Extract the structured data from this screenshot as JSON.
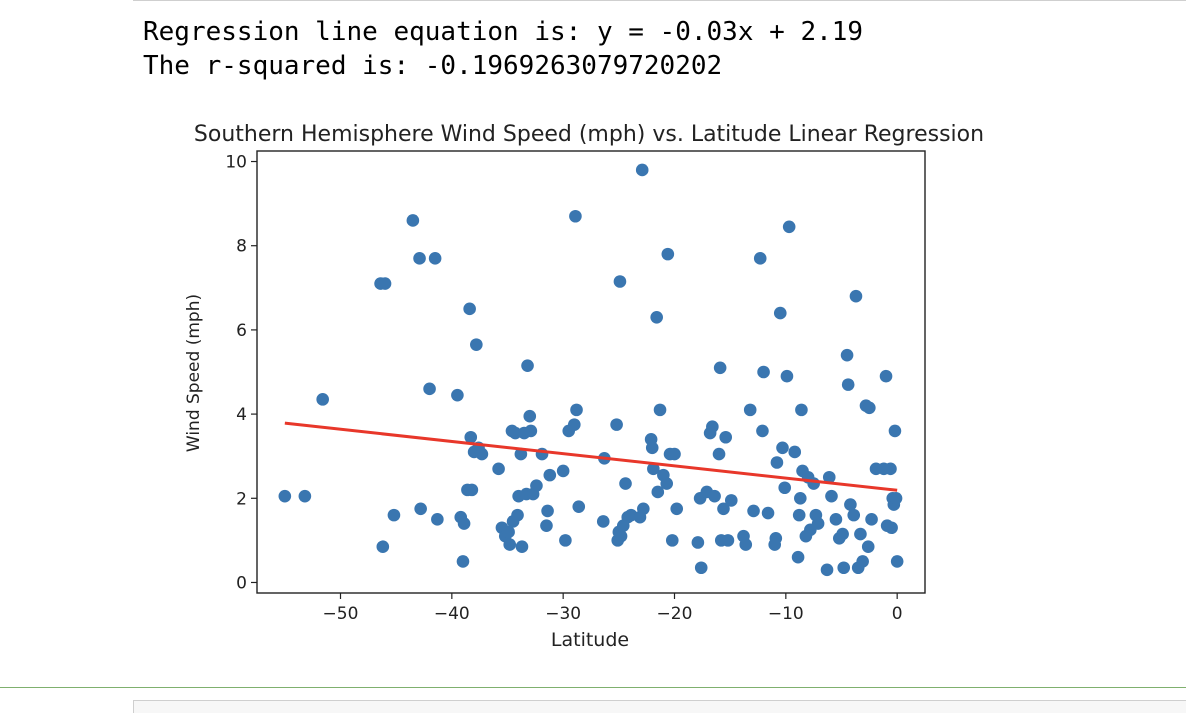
{
  "output": {
    "line1": "Regression line equation is: y = -0.03x + 2.19",
    "line2": "The r-squared is: -0.1969263079720202"
  },
  "chart_data": {
    "type": "scatter",
    "title": "Southern Hemisphere Wind Speed (mph) vs. Latitude Linear Regression",
    "xlabel": "Latitude",
    "ylabel": "Wind Speed (mph)",
    "xlim": [
      -57.5,
      2.5
    ],
    "ylim": [
      -0.25,
      10.25
    ],
    "xticks": [
      -50,
      -40,
      -30,
      -20,
      -10,
      0
    ],
    "yticks": [
      0,
      2,
      4,
      6,
      8,
      10
    ],
    "point_color": "#3a76b0",
    "line_color": "#e8372a",
    "grid": false,
    "regression": {
      "slope": -0.029,
      "intercept": 2.19,
      "x_start": -55,
      "x_end": 0
    },
    "points": [
      [
        -55.0,
        2.05
      ],
      [
        -53.2,
        2.05
      ],
      [
        -51.6,
        4.35
      ],
      [
        -46.4,
        7.1
      ],
      [
        -46.0,
        7.1
      ],
      [
        -46.2,
        0.85
      ],
      [
        -45.2,
        1.6
      ],
      [
        -43.5,
        8.6
      ],
      [
        -42.9,
        7.7
      ],
      [
        -42.8,
        1.75
      ],
      [
        -42.0,
        4.6
      ],
      [
        -41.5,
        7.7
      ],
      [
        -41.3,
        1.5
      ],
      [
        -39.5,
        4.45
      ],
      [
        -39.2,
        1.55
      ],
      [
        -39.0,
        0.5
      ],
      [
        -38.9,
        1.4
      ],
      [
        -38.6,
        2.2
      ],
      [
        -38.4,
        6.5
      ],
      [
        -38.3,
        3.45
      ],
      [
        -38.2,
        2.2
      ],
      [
        -38.0,
        3.1
      ],
      [
        -37.8,
        5.65
      ],
      [
        -37.6,
        3.2
      ],
      [
        -37.3,
        3.05
      ],
      [
        -35.8,
        2.7
      ],
      [
        -35.5,
        1.3
      ],
      [
        -35.2,
        1.1
      ],
      [
        -34.9,
        1.2
      ],
      [
        -34.8,
        0.9
      ],
      [
        -34.6,
        3.6
      ],
      [
        -34.5,
        1.45
      ],
      [
        -34.3,
        3.55
      ],
      [
        -34.1,
        1.6
      ],
      [
        -34.0,
        2.05
      ],
      [
        -33.8,
        3.05
      ],
      [
        -33.7,
        0.85
      ],
      [
        -33.5,
        3.55
      ],
      [
        -33.3,
        2.1
      ],
      [
        -33.2,
        5.15
      ],
      [
        -33.0,
        3.95
      ],
      [
        -32.9,
        3.6
      ],
      [
        -32.7,
        2.1
      ],
      [
        -32.4,
        2.3
      ],
      [
        -31.9,
        3.05
      ],
      [
        -31.5,
        1.35
      ],
      [
        -31.4,
        1.7
      ],
      [
        -31.2,
        2.55
      ],
      [
        -30.0,
        2.65
      ],
      [
        -29.8,
        1.0
      ],
      [
        -29.5,
        3.6
      ],
      [
        -29.0,
        3.75
      ],
      [
        -28.9,
        8.7
      ],
      [
        -28.8,
        4.1
      ],
      [
        -28.6,
        1.8
      ],
      [
        -26.4,
        1.45
      ],
      [
        -26.3,
        2.95
      ],
      [
        -25.2,
        3.75
      ],
      [
        -25.1,
        1.0
      ],
      [
        -25.0,
        1.2
      ],
      [
        -24.9,
        7.15
      ],
      [
        -24.8,
        1.1
      ],
      [
        -24.6,
        1.35
      ],
      [
        -24.4,
        2.35
      ],
      [
        -24.2,
        1.55
      ],
      [
        -23.9,
        1.6
      ],
      [
        -23.1,
        1.55
      ],
      [
        -22.9,
        9.8
      ],
      [
        -22.8,
        1.75
      ],
      [
        -22.1,
        3.4
      ],
      [
        -22.0,
        3.2
      ],
      [
        -21.9,
        2.7
      ],
      [
        -21.6,
        6.3
      ],
      [
        -21.5,
        2.15
      ],
      [
        -21.3,
        4.1
      ],
      [
        -21.0,
        2.55
      ],
      [
        -20.7,
        2.35
      ],
      [
        -20.6,
        7.8
      ],
      [
        -20.4,
        3.05
      ],
      [
        -20.2,
        1.0
      ],
      [
        -20.0,
        3.05
      ],
      [
        -19.8,
        1.75
      ],
      [
        -17.9,
        0.95
      ],
      [
        -17.7,
        2.0
      ],
      [
        -17.6,
        0.35
      ],
      [
        -17.1,
        2.15
      ],
      [
        -16.8,
        3.55
      ],
      [
        -16.6,
        3.7
      ],
      [
        -16.4,
        2.05
      ],
      [
        -16.0,
        3.05
      ],
      [
        -15.9,
        5.1
      ],
      [
        -15.8,
        1.0
      ],
      [
        -15.6,
        1.75
      ],
      [
        -15.4,
        3.45
      ],
      [
        -15.2,
        1.0
      ],
      [
        -14.9,
        1.95
      ],
      [
        -13.8,
        1.1
      ],
      [
        -13.6,
        0.9
      ],
      [
        -13.2,
        4.1
      ],
      [
        -12.9,
        1.7
      ],
      [
        -12.3,
        7.7
      ],
      [
        -12.1,
        3.6
      ],
      [
        -12.0,
        5.0
      ],
      [
        -11.6,
        1.65
      ],
      [
        -11.0,
        0.9
      ],
      [
        -10.9,
        1.05
      ],
      [
        -10.8,
        2.85
      ],
      [
        -10.5,
        6.4
      ],
      [
        -10.3,
        3.2
      ],
      [
        -10.1,
        2.25
      ],
      [
        -9.9,
        4.9
      ],
      [
        -9.7,
        8.45
      ],
      [
        -9.2,
        3.1
      ],
      [
        -8.9,
        0.6
      ],
      [
        -8.8,
        1.6
      ],
      [
        -8.7,
        2.0
      ],
      [
        -8.6,
        4.1
      ],
      [
        -8.5,
        2.65
      ],
      [
        -8.2,
        1.1
      ],
      [
        -8.0,
        2.5
      ],
      [
        -7.8,
        1.25
      ],
      [
        -7.5,
        2.35
      ],
      [
        -7.3,
        1.6
      ],
      [
        -7.1,
        1.4
      ],
      [
        -6.3,
        0.3
      ],
      [
        -6.1,
        2.5
      ],
      [
        -5.9,
        2.05
      ],
      [
        -5.5,
        1.5
      ],
      [
        -5.2,
        1.05
      ],
      [
        -4.9,
        1.15
      ],
      [
        -4.8,
        0.35
      ],
      [
        -4.5,
        5.4
      ],
      [
        -4.4,
        4.7
      ],
      [
        -4.2,
        1.85
      ],
      [
        -3.9,
        1.6
      ],
      [
        -3.7,
        6.8
      ],
      [
        -3.5,
        0.35
      ],
      [
        -3.3,
        1.15
      ],
      [
        -3.1,
        0.5
      ],
      [
        -2.8,
        4.2
      ],
      [
        -2.6,
        0.85
      ],
      [
        -2.5,
        4.15
      ],
      [
        -2.3,
        1.5
      ],
      [
        -1.9,
        2.7
      ],
      [
        -1.2,
        2.7
      ],
      [
        -1.0,
        4.9
      ],
      [
        -0.9,
        1.35
      ],
      [
        -0.6,
        2.7
      ],
      [
        -0.5,
        1.3
      ],
      [
        -0.4,
        2.0
      ],
      [
        -0.3,
        1.85
      ],
      [
        -0.2,
        3.6
      ],
      [
        -0.1,
        2.0
      ],
      [
        0.0,
        0.5
      ]
    ]
  }
}
